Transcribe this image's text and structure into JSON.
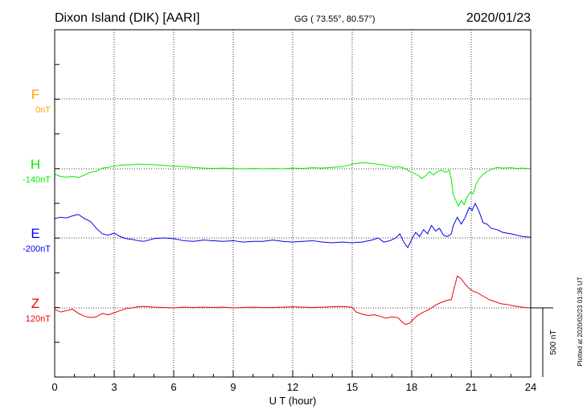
{
  "header": {
    "station": "Dixon Island (DIK)  [AARI]",
    "coords": "GG ( 73.55°,  80.57°)",
    "date": "2020/01/23"
  },
  "footer": {
    "plotted": "Plotted at 2020/02/23 01:36 UT"
  },
  "scale_bar": {
    "label": "500 nT",
    "value_nT": 500
  },
  "chart_data": {
    "type": "line",
    "xlabel": "U T (hour)",
    "xlim": [
      0,
      24
    ],
    "xticks": [
      0,
      3,
      6,
      9,
      12,
      15,
      18,
      21,
      24
    ],
    "grid": true,
    "series": [
      {
        "name": "F",
        "baseline": "0nT",
        "color": "#ffa500",
        "points": []
      },
      {
        "name": "H",
        "baseline": "-140nT",
        "color": "#00ee00",
        "points": [
          [
            0.0,
            -40
          ],
          [
            0.3,
            -55
          ],
          [
            0.6,
            -60
          ],
          [
            0.9,
            -55
          ],
          [
            1.2,
            -62
          ],
          [
            1.5,
            -45
          ],
          [
            1.8,
            -25
          ],
          [
            2.1,
            -18
          ],
          [
            2.4,
            5
          ],
          [
            2.7,
            10
          ],
          [
            3.0,
            20
          ],
          [
            3.3,
            25
          ],
          [
            3.6,
            30
          ],
          [
            3.9,
            28
          ],
          [
            4.2,
            35
          ],
          [
            4.5,
            32
          ],
          [
            5.0,
            30
          ],
          [
            5.5,
            25
          ],
          [
            6.0,
            20
          ],
          [
            6.5,
            15
          ],
          [
            7.0,
            10
          ],
          [
            7.5,
            5
          ],
          [
            8.0,
            3
          ],
          [
            8.5,
            5
          ],
          [
            9.0,
            2
          ],
          [
            9.5,
            0
          ],
          [
            10.0,
            3
          ],
          [
            10.5,
            0
          ],
          [
            11.0,
            2
          ],
          [
            11.5,
            0
          ],
          [
            12.0,
            5
          ],
          [
            12.5,
            3
          ],
          [
            13.0,
            8
          ],
          [
            13.5,
            5
          ],
          [
            14.0,
            10
          ],
          [
            14.5,
            15
          ],
          [
            14.8,
            25
          ],
          [
            15.0,
            35
          ],
          [
            15.3,
            40
          ],
          [
            15.6,
            45
          ],
          [
            15.9,
            40
          ],
          [
            16.2,
            35
          ],
          [
            16.5,
            30
          ],
          [
            16.8,
            20
          ],
          [
            17.1,
            10
          ],
          [
            17.4,
            15
          ],
          [
            17.7,
            0
          ],
          [
            17.9,
            -20
          ],
          [
            18.1,
            -30
          ],
          [
            18.3,
            -45
          ],
          [
            18.5,
            -70
          ],
          [
            18.7,
            -50
          ],
          [
            18.9,
            -20
          ],
          [
            19.1,
            -45
          ],
          [
            19.3,
            -20
          ],
          [
            19.5,
            -10
          ],
          [
            19.7,
            -25
          ],
          [
            19.9,
            -10
          ],
          [
            20.0,
            -80
          ],
          [
            20.1,
            -190
          ],
          [
            20.2,
            -220
          ],
          [
            20.35,
            -270
          ],
          [
            20.5,
            -230
          ],
          [
            20.65,
            -260
          ],
          [
            20.8,
            -200
          ],
          [
            20.95,
            -170
          ],
          [
            21.1,
            -180
          ],
          [
            21.25,
            -110
          ],
          [
            21.4,
            -70
          ],
          [
            21.6,
            -40
          ],
          [
            21.8,
            -20
          ],
          [
            22.0,
            -5
          ],
          [
            22.3,
            10
          ],
          [
            22.6,
            5
          ],
          [
            23.0,
            8
          ],
          [
            23.3,
            3
          ],
          [
            23.6,
            5
          ],
          [
            24.0,
            0
          ]
        ]
      },
      {
        "name": "E",
        "baseline": "-200nT",
        "color": "#0000ee",
        "points": [
          [
            0.0,
            140
          ],
          [
            0.3,
            150
          ],
          [
            0.6,
            145
          ],
          [
            0.9,
            160
          ],
          [
            1.2,
            170
          ],
          [
            1.5,
            140
          ],
          [
            1.8,
            120
          ],
          [
            2.1,
            70
          ],
          [
            2.4,
            30
          ],
          [
            2.7,
            20
          ],
          [
            3.0,
            35
          ],
          [
            3.3,
            10
          ],
          [
            3.6,
            -5
          ],
          [
            3.9,
            -10
          ],
          [
            4.2,
            -20
          ],
          [
            4.5,
            -25
          ],
          [
            5.0,
            -5
          ],
          [
            5.5,
            0
          ],
          [
            6.0,
            -5
          ],
          [
            6.5,
            -20
          ],
          [
            7.0,
            -25
          ],
          [
            7.5,
            -15
          ],
          [
            8.0,
            -20
          ],
          [
            8.5,
            -25
          ],
          [
            9.0,
            -20
          ],
          [
            9.5,
            -30
          ],
          [
            10.0,
            -25
          ],
          [
            10.5,
            -25
          ],
          [
            11.0,
            -15
          ],
          [
            11.5,
            -25
          ],
          [
            12.0,
            -30
          ],
          [
            12.5,
            -25
          ],
          [
            13.0,
            -20
          ],
          [
            13.5,
            -30
          ],
          [
            14.0,
            -35
          ],
          [
            14.5,
            -30
          ],
          [
            15.0,
            -35
          ],
          [
            15.5,
            -30
          ],
          [
            16.0,
            -15
          ],
          [
            16.3,
            0
          ],
          [
            16.6,
            -30
          ],
          [
            16.9,
            -20
          ],
          [
            17.2,
            0
          ],
          [
            17.4,
            30
          ],
          [
            17.6,
            -30
          ],
          [
            17.8,
            -70
          ],
          [
            18.0,
            -10
          ],
          [
            18.2,
            40
          ],
          [
            18.4,
            10
          ],
          [
            18.6,
            60
          ],
          [
            18.8,
            30
          ],
          [
            19.0,
            90
          ],
          [
            19.2,
            50
          ],
          [
            19.4,
            70
          ],
          [
            19.6,
            20
          ],
          [
            19.8,
            10
          ],
          [
            20.0,
            30
          ],
          [
            20.1,
            90
          ],
          [
            20.3,
            150
          ],
          [
            20.5,
            100
          ],
          [
            20.7,
            150
          ],
          [
            20.9,
            220
          ],
          [
            21.05,
            200
          ],
          [
            21.2,
            250
          ],
          [
            21.4,
            190
          ],
          [
            21.6,
            110
          ],
          [
            21.8,
            100
          ],
          [
            22.0,
            70
          ],
          [
            22.3,
            60
          ],
          [
            22.6,
            40
          ],
          [
            23.0,
            30
          ],
          [
            23.3,
            20
          ],
          [
            23.6,
            10
          ],
          [
            24.0,
            5
          ]
        ]
      },
      {
        "name": "Z",
        "baseline": "120nT",
        "color": "#ee0000",
        "points": [
          [
            0.0,
            -10
          ],
          [
            0.3,
            -30
          ],
          [
            0.6,
            -20
          ],
          [
            0.9,
            -10
          ],
          [
            1.2,
            -40
          ],
          [
            1.5,
            -60
          ],
          [
            1.8,
            -70
          ],
          [
            2.1,
            -65
          ],
          [
            2.4,
            -40
          ],
          [
            2.7,
            -50
          ],
          [
            3.0,
            -35
          ],
          [
            3.3,
            -20
          ],
          [
            3.6,
            -5
          ],
          [
            3.9,
            0
          ],
          [
            4.2,
            8
          ],
          [
            4.5,
            10
          ],
          [
            5.0,
            5
          ],
          [
            5.5,
            3
          ],
          [
            6.0,
            0
          ],
          [
            6.5,
            5
          ],
          [
            7.0,
            3
          ],
          [
            7.5,
            5
          ],
          [
            8.0,
            3
          ],
          [
            8.5,
            5
          ],
          [
            9.0,
            0
          ],
          [
            9.5,
            3
          ],
          [
            10.0,
            5
          ],
          [
            10.5,
            2
          ],
          [
            11.0,
            3
          ],
          [
            11.5,
            5
          ],
          [
            12.0,
            8
          ],
          [
            12.5,
            5
          ],
          [
            13.0,
            3
          ],
          [
            13.5,
            5
          ],
          [
            14.0,
            8
          ],
          [
            14.5,
            10
          ],
          [
            15.0,
            5
          ],
          [
            15.2,
            -30
          ],
          [
            15.5,
            -45
          ],
          [
            15.8,
            -55
          ],
          [
            16.1,
            -50
          ],
          [
            16.4,
            -60
          ],
          [
            16.7,
            -75
          ],
          [
            17.0,
            -65
          ],
          [
            17.3,
            -70
          ],
          [
            17.5,
            -100
          ],
          [
            17.7,
            -120
          ],
          [
            17.9,
            -110
          ],
          [
            18.1,
            -80
          ],
          [
            18.3,
            -55
          ],
          [
            18.6,
            -30
          ],
          [
            18.9,
            -10
          ],
          [
            19.2,
            20
          ],
          [
            19.5,
            40
          ],
          [
            19.8,
            55
          ],
          [
            20.0,
            60
          ],
          [
            20.1,
            120
          ],
          [
            20.3,
            230
          ],
          [
            20.5,
            210
          ],
          [
            20.7,
            170
          ],
          [
            20.9,
            140
          ],
          [
            21.1,
            120
          ],
          [
            21.3,
            110
          ],
          [
            21.6,
            85
          ],
          [
            21.9,
            60
          ],
          [
            22.2,
            45
          ],
          [
            22.5,
            30
          ],
          [
            22.8,
            25
          ],
          [
            23.1,
            15
          ],
          [
            23.4,
            8
          ],
          [
            23.7,
            3
          ],
          [
            24.0,
            0
          ]
        ]
      }
    ]
  }
}
